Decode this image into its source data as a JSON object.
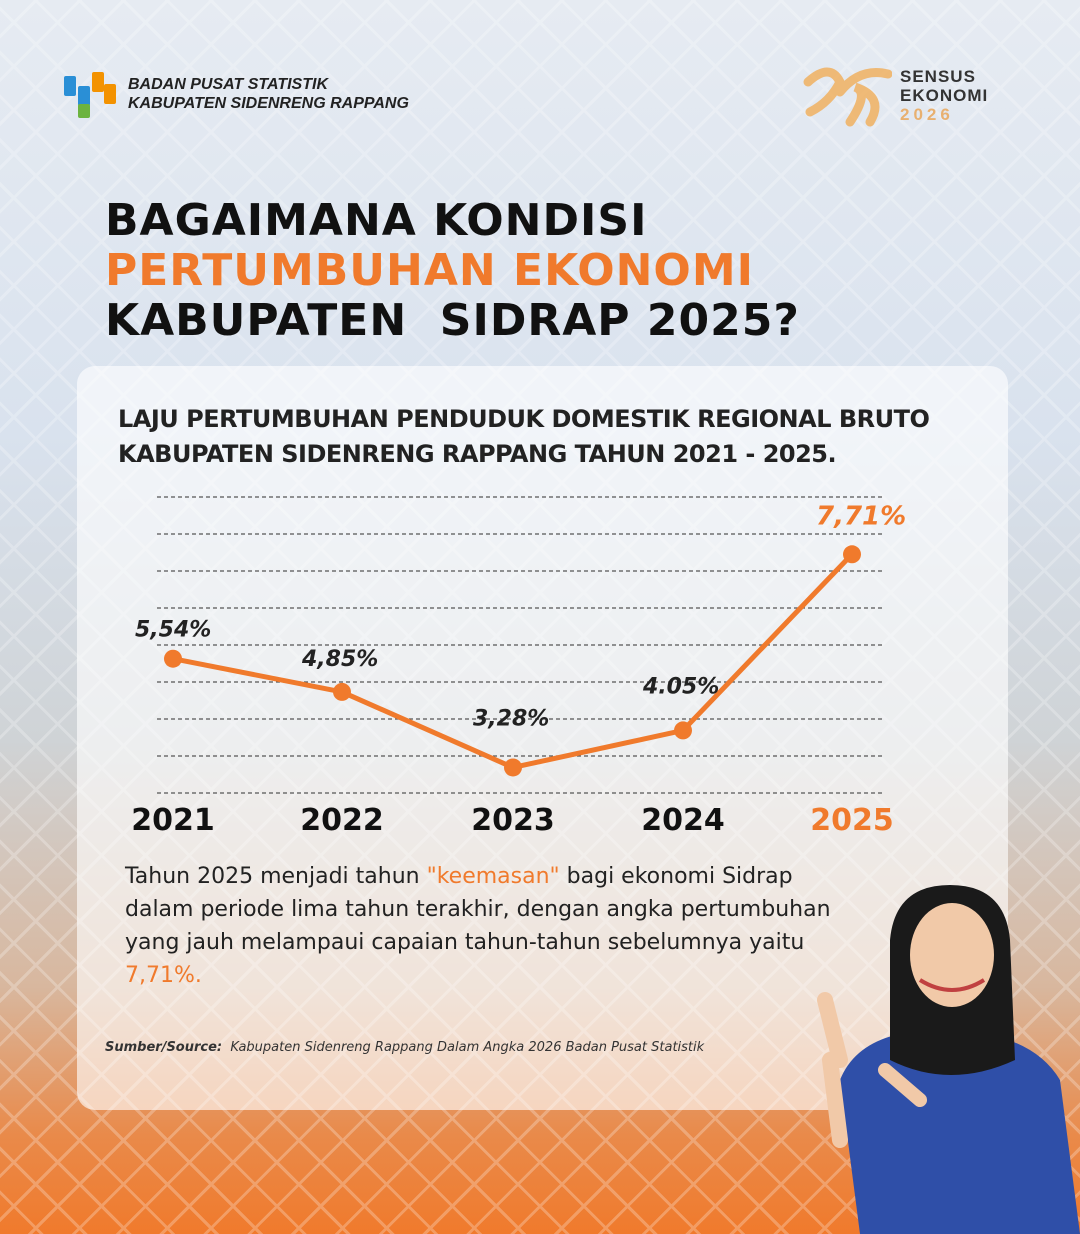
{
  "header": {
    "org_line1": "BADAN PUSAT STATISTIK",
    "org_line2": "KABUPATEN SIDENRENG RAPPANG",
    "census_line1": "SENSUS",
    "census_line2": "EKONOMI",
    "census_year": "2026"
  },
  "title": {
    "line1": "BAGAIMANA KONDISI",
    "line2": "PERTUMBUHAN EKONOMI",
    "line3": "KABUPATEN  SIDRAP 2025?"
  },
  "chart_data": {
    "type": "line",
    "title": "LAJU PERTUMBUHAN PENDUDUK DOMESTIK REGIONAL BRUTO KABUPATEN SIDENRENG RAPPANG TAHUN 2021 - 2025.",
    "title_line1": "LAJU PERTUMBUHAN PENDUDUK DOMESTIK REGIONAL BRUTO",
    "title_line2": "KABUPATEN SIDENRENG RAPPANG TAHUN 2021 - 2025.",
    "categories": [
      "2021",
      "2022",
      "2023",
      "2024",
      "2025"
    ],
    "values": [
      5.54,
      4.85,
      3.28,
      4.05,
      7.71
    ],
    "labels": [
      "5,54%",
      "4,85%",
      "3,28%",
      "4.05%",
      "7,71%"
    ],
    "ylim": [
      2.75,
      8.9
    ],
    "grid": true,
    "line_color": "#f07a2c",
    "highlight_color": "#f07a2c"
  },
  "description": {
    "p1": "Tahun 2025 menjadi tahun ",
    "highlight1": "\"keemasan\"",
    "p2": " bagi ekonomi Sidrap dalam periode lima tahun terakhir, dengan angka pertumbuhan yang jauh melampaui capaian tahun-tahun sebelumnya yaitu ",
    "highlight2": "7,71%."
  },
  "source": {
    "label": "Sumber/Source:",
    "text": "Kabupaten Sidenreng Rappang Dalam Angka 2026 Badan Pusat Statistik"
  }
}
